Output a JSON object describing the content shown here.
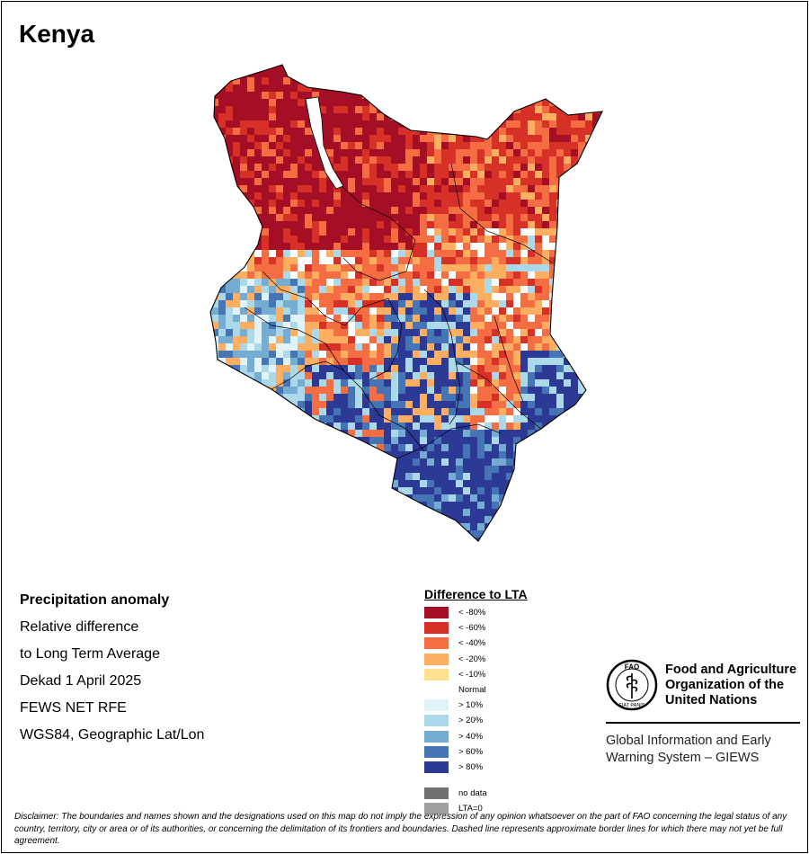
{
  "map": {
    "title": "Kenya",
    "colors": {
      "neg80": "#a50f26",
      "neg60": "#d73027",
      "neg40": "#f46d43",
      "neg20": "#fdae61",
      "neg10": "#fee090",
      "normal": "#ffffff",
      "pos10": "#e0f3f8",
      "pos20": "#abd9e9",
      "pos40": "#74add1",
      "pos60": "#4575b4",
      "pos80": "#2c3a96",
      "nodata": "#707070",
      "lta0": "#a0a0a0"
    }
  },
  "info": {
    "lines": [
      "Precipitation anomaly",
      "Relative difference",
      "to Long Term Average",
      "Dekad 1 April 2025",
      "FEWS NET RFE",
      "WGS84, Geographic Lat/Lon"
    ]
  },
  "legend": {
    "title": "Difference to LTA",
    "items": [
      {
        "label": "< -80%",
        "color": "#a50f26"
      },
      {
        "label": "< -60%",
        "color": "#d73027"
      },
      {
        "label": "< -40%",
        "color": "#f46d43"
      },
      {
        "label": "< -20%",
        "color": "#fdae61"
      },
      {
        "label": "< -10%",
        "color": "#fee090"
      },
      {
        "label": "Normal",
        "color": "#ffffff"
      },
      {
        "label": "> 10%",
        "color": "#e0f3f8"
      },
      {
        "label": "> 20%",
        "color": "#abd9e9"
      },
      {
        "label": "> 40%",
        "color": "#74add1"
      },
      {
        "label": "> 60%",
        "color": "#4575b4"
      },
      {
        "label": "> 80%",
        "color": "#2c3a96"
      }
    ],
    "extra": [
      {
        "label": "no data",
        "color": "#707070"
      },
      {
        "label": "LTA=0",
        "color": "#a0a0a0"
      }
    ]
  },
  "fao": {
    "org_lines": [
      "Food and Agriculture",
      "Organization of the",
      "United Nations"
    ],
    "logo_text": "FAO",
    "logo_motto": "FIAT PANIS",
    "giews_lines": [
      "Global Information and Early",
      "Warning System – GIEWS"
    ]
  },
  "disclaimer": "Disclaimer: The boundaries and names shown and the designations used on this map do not imply the expression of any opinion whatsoever on the part of FAO concerning the legal status of any country, territory, city or area or of its authorities, or concerning the delimitation of its frontiers and boundaries. Dashed line represents approximate border lines for which there may not yet be full agreement."
}
